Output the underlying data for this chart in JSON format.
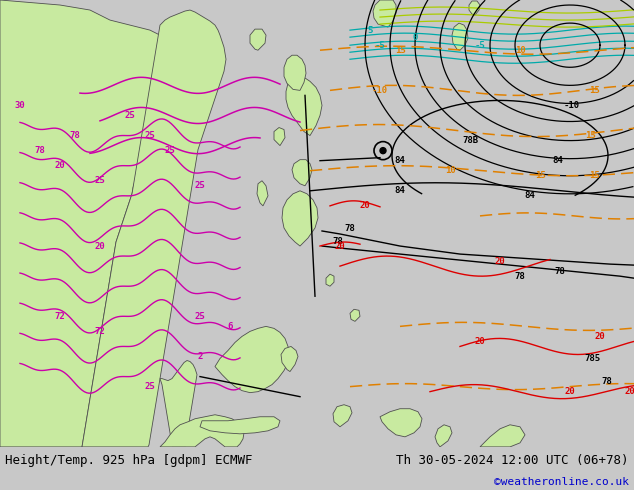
{
  "title_left": "Height/Temp. 925 hPa [gdpm] ECMWF",
  "title_right": "Th 30-05-2024 12:00 UTC (06+78)",
  "credit": "©weatheronline.co.uk",
  "bg_color": "#c8c8c8",
  "map_bg_color": "#d8d8d8",
  "land_color_light": "#c8eaa0",
  "land_color_dark": "#a8cc80",
  "sea_color": "#dce8f0",
  "ocean_color": "#e8eef4",
  "bottom_bar_color": "#d0d0d0",
  "title_color": "#000000",
  "title_fontsize": 9.0,
  "credit_color": "#0000cc",
  "credit_fontsize": 8.0,
  "fig_width": 6.34,
  "fig_height": 4.9,
  "dpi": 100,
  "contour_color_black": "#000000",
  "contour_color_orange": "#e08000",
  "contour_color_red": "#dd0000",
  "contour_color_magenta": "#cc00aa",
  "contour_color_green": "#00aa44",
  "contour_color_cyan": "#00aaaa",
  "contour_color_yellow_green": "#aacc00"
}
